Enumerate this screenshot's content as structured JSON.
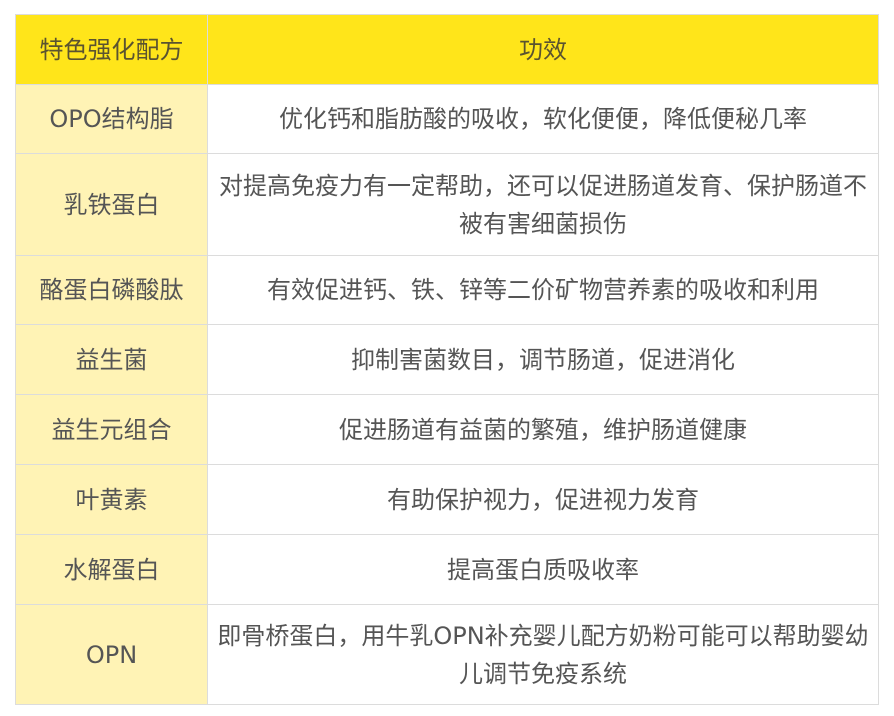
{
  "colors": {
    "header_bg": "#ffe51a",
    "first_col_bg": "#fff3b5",
    "text": "#555555",
    "border": "#dcdcdc"
  },
  "header": [
    "特色强化配方",
    "功效"
  ],
  "rows": [
    {
      "name": "OPO结构脂",
      "effect": "优化钙和脂肪酸的吸收，软化便便，降低便秘几率",
      "h": 69
    },
    {
      "name": "乳铁蛋白",
      "effect": "对提高免疫力有一定帮助，还可以促进肠道发育、保护肠道不被有害细菌损伤",
      "h": 102
    },
    {
      "name": "酪蛋白磷酸肽",
      "effect": "有效促进钙、铁、锌等二价矿物营养素的吸收和利用",
      "h": 69
    },
    {
      "name": "益生菌",
      "effect": "抑制害菌数目，调节肠道，促进消化",
      "h": 70
    },
    {
      "name": "益生元组合",
      "effect": "促进肠道有益菌的繁殖，维护肠道健康",
      "h": 70
    },
    {
      "name": "叶黄素",
      "effect": "有助保护视力，促进视力发育",
      "h": 70
    },
    {
      "name": "水解蛋白",
      "effect": "提高蛋白质吸收率",
      "h": 70
    },
    {
      "name": "OPN",
      "effect": "即骨桥蛋白，用牛乳OPN补充婴儿配方奶粉可能可以帮助婴幼儿调节免疫系统",
      "h": 100
    }
  ]
}
